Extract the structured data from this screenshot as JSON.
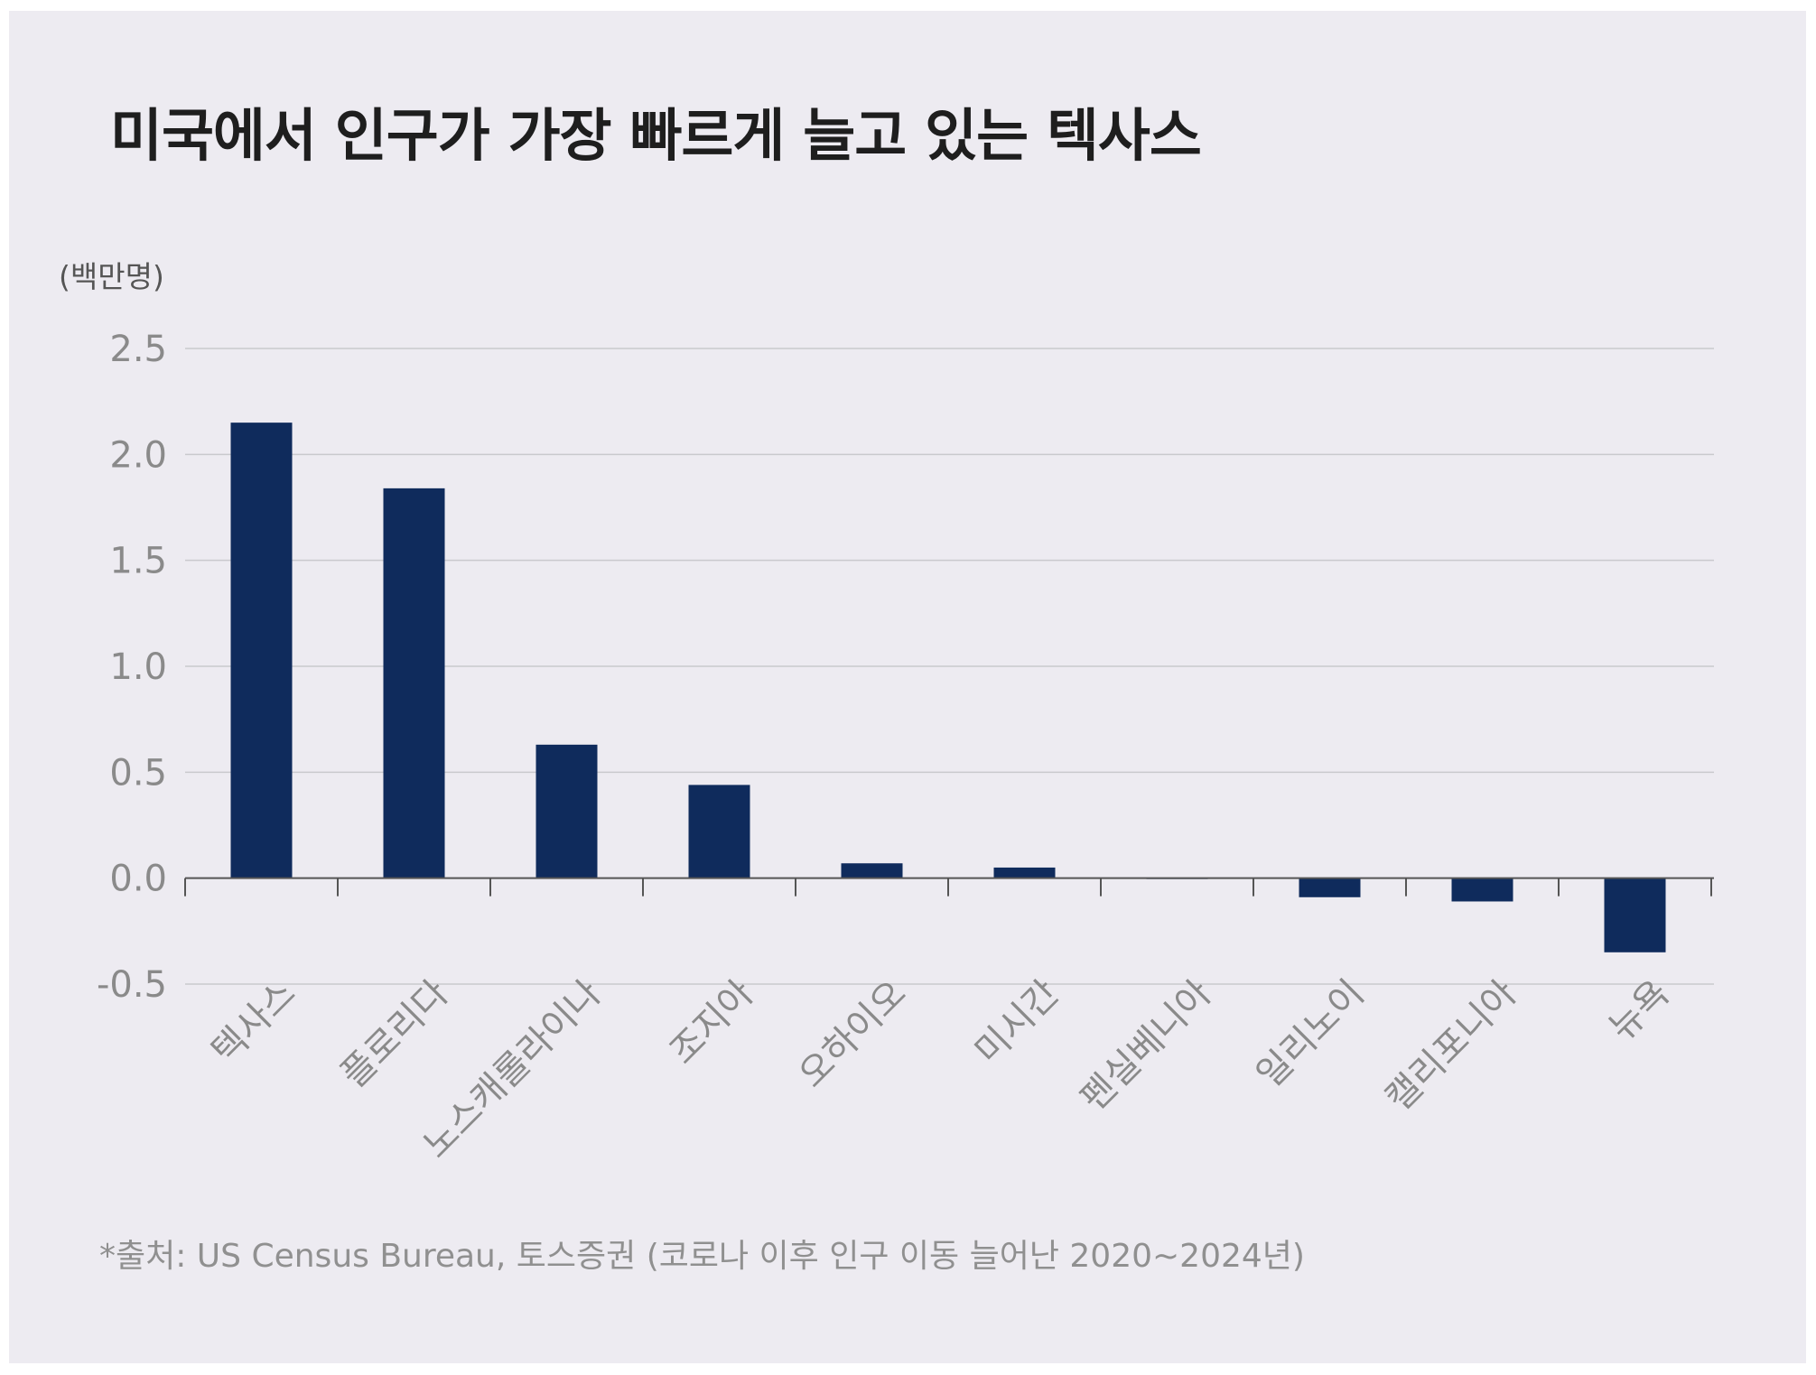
{
  "title": "미국에서 인구가 가장 빠르게 늘고 있는 텍사스",
  "source": "*출처: US Census Bureau, 토스증권 (코로나 이후 인구 이동 늘어난 2020~2024년)",
  "colors": {
    "bar": "#0f2b5c",
    "background": "#edebf1",
    "grid": "#c9c9cd",
    "axis": "#555555",
    "tick_text": "#8a8a8a"
  },
  "chart_data": {
    "type": "bar",
    "title": "미국에서 인구가 가장 빠르게 늘고 있는 텍사스",
    "unit_label": "(백만명)",
    "categories": [
      "텍사스",
      "플로리다",
      "노스캐롤라이나",
      "조지아",
      "오하이오",
      "미시간",
      "펜실베니아",
      "일리노이",
      "캘리포니아",
      "뉴욕"
    ],
    "values": [
      2.15,
      1.84,
      0.63,
      0.44,
      0.07,
      0.05,
      0.0,
      -0.09,
      -0.11,
      -0.35
    ],
    "ylim": [
      -0.5,
      2.5
    ],
    "yticks": [
      "2.5",
      "2.0",
      "1.5",
      "1.0",
      "0.5",
      "0.0",
      "-0.5"
    ],
    "ytick_values": [
      2.5,
      2.0,
      1.5,
      1.0,
      0.5,
      0.0,
      -0.5
    ],
    "grid": true,
    "legend": "none"
  }
}
